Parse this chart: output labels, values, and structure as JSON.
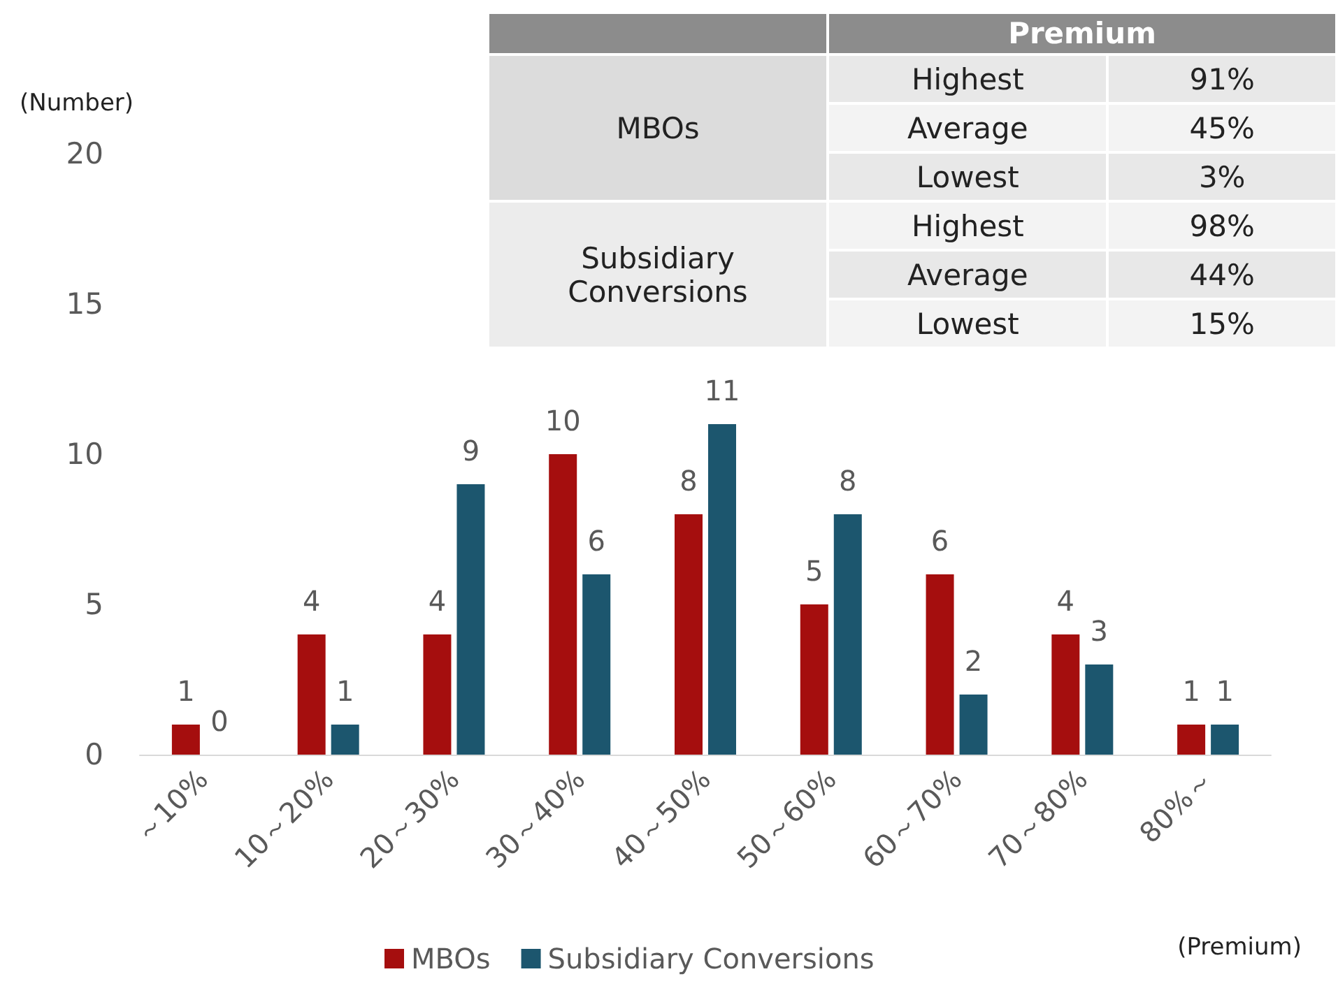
{
  "chart_data": {
    "type": "bar",
    "ylabel": "(Number)",
    "xlabel": "(Premium)",
    "categories": [
      "～10%",
      "10～20%",
      "20～30%",
      "30～40%",
      "40～50%",
      "50～60%",
      "60～70%",
      "70～80%",
      "80%～"
    ],
    "series": [
      {
        "name": "MBOs",
        "color": "#a50e0e",
        "values": [
          1,
          4,
          4,
          10,
          8,
          5,
          6,
          4,
          1
        ]
      },
      {
        "name": "Subsidiary Conversions",
        "color": "#1c566e",
        "values": [
          0,
          1,
          9,
          6,
          11,
          8,
          2,
          3,
          1
        ]
      }
    ],
    "ylim": [
      0,
      20
    ],
    "yticks": [
      0,
      5,
      10,
      15,
      20
    ],
    "grid": false,
    "legend": "bottom",
    "data_labels": true,
    "annotations": [
      "Premium",
      "MBOs",
      "Highest",
      "91%",
      "Average",
      "45%",
      "Lowest",
      "3%",
      "Subsidiary Conversions",
      "Highest",
      "98%",
      "Average",
      "44%",
      "Lowest",
      "15%"
    ]
  }
}
